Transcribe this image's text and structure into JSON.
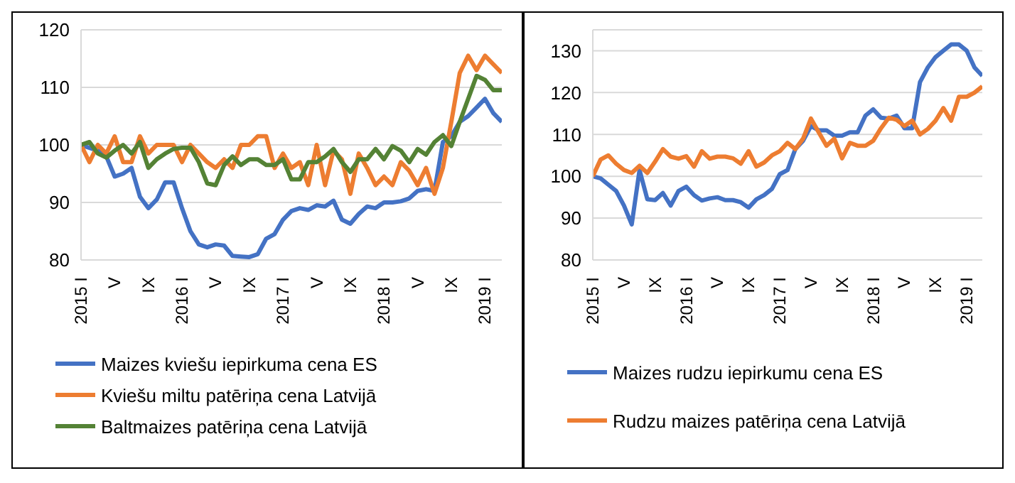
{
  "chart_data": [
    {
      "type": "line",
      "categories": [
        "2015 I",
        null,
        null,
        null,
        "V",
        null,
        null,
        null,
        "IX",
        null,
        null,
        null,
        "2016 I",
        null,
        null,
        null,
        "V",
        null,
        null,
        null,
        "IX",
        null,
        null,
        null,
        "2017 I",
        null,
        null,
        null,
        "V",
        null,
        null,
        null,
        "IX",
        null,
        null,
        null,
        "2018 I",
        null,
        null,
        null,
        "V",
        null,
        null,
        null,
        "IX",
        null,
        null,
        null,
        "2019 I",
        null,
        null
      ],
      "ylim": [
        80,
        120
      ],
      "yticks": [
        80,
        90,
        100,
        110,
        120
      ],
      "grid": "y",
      "legend": "bottom",
      "marker": "none",
      "series": [
        {
          "name": "Maizes kviešu iepirkuma cena ES",
          "color": "#4472c4",
          "values": [
            100,
            99.5,
            99,
            98,
            94.5,
            95,
            96,
            91,
            89,
            90.5,
            93.5,
            93.5,
            89,
            85,
            82.7,
            82.2,
            82.7,
            82.5,
            80.7,
            80.6,
            80.5,
            81,
            83.7,
            84.5,
            87,
            88.5,
            89,
            88.7,
            89.5,
            89.3,
            90.3,
            87,
            86.3,
            88,
            89.3,
            89,
            90,
            90,
            90.2,
            90.7,
            92,
            92.3,
            92,
            100.5,
            101.5,
            104,
            105,
            106.5,
            108,
            105.5,
            104
          ]
        },
        {
          "name": "Kviešu miltu patēriņa cena Latvijā",
          "color": "#ed7d31",
          "values": [
            100,
            97,
            100,
            98.5,
            101.5,
            97,
            97,
            101.5,
            98.5,
            100,
            100,
            100,
            97,
            100,
            98.5,
            97,
            96,
            97.5,
            96,
            100,
            100,
            101.5,
            101.5,
            96,
            98.5,
            96,
            97,
            93,
            100,
            93,
            99,
            97.5,
            91.5,
            98.5,
            96,
            93,
            94.5,
            93,
            97,
            95.5,
            93,
            96,
            91.5,
            96,
            104,
            112.5,
            115.5,
            113,
            115.5,
            114,
            112.5
          ]
        },
        {
          "name": "Baltmaizes patēriņa cena Latvijā",
          "color": "#548235",
          "values": [
            100,
            100.5,
            98.5,
            97.8,
            99,
            100,
            98.5,
            100.5,
            96,
            97.5,
            98.5,
            99.3,
            99.5,
            99.5,
            97,
            93.3,
            93,
            96.5,
            98,
            96.5,
            97.5,
            97.5,
            96.5,
            96.5,
            97.5,
            94,
            94,
            97,
            97,
            98,
            99.3,
            97,
            95.3,
            97.5,
            97.5,
            99.3,
            97.5,
            99.8,
            99,
            97,
            99.3,
            98.3,
            100.5,
            101.7,
            99.8,
            104,
            108,
            112,
            111.3,
            109.5,
            109.5
          ]
        }
      ]
    },
    {
      "type": "line",
      "categories": [
        "2015 I",
        null,
        null,
        null,
        "V",
        null,
        null,
        null,
        "IX",
        null,
        null,
        null,
        "2016 I",
        null,
        null,
        null,
        "V",
        null,
        null,
        null,
        "IX",
        null,
        null,
        null,
        "2017 I",
        null,
        null,
        null,
        "V",
        null,
        null,
        null,
        "IX",
        null,
        null,
        null,
        "2018 I",
        null,
        null,
        null,
        "V",
        null,
        null,
        null,
        "IX",
        null,
        null,
        null,
        "2019 I",
        null,
        null
      ],
      "ylim": [
        80,
        135
      ],
      "yticks": [
        80,
        90,
        100,
        110,
        120,
        130
      ],
      "grid": "y",
      "legend": "bottom",
      "marker": "none",
      "series": [
        {
          "name": "Maizes rudzu iepirkumu cena ES",
          "color": "#4472c4",
          "values": [
            100,
            99.5,
            98,
            96.5,
            93,
            88.5,
            101.5,
            94.5,
            94.3,
            96,
            93,
            96.5,
            97.5,
            95.5,
            94.2,
            94.7,
            95,
            94.3,
            94.3,
            93.8,
            92.5,
            94.5,
            95.5,
            97,
            100.5,
            101.5,
            106.5,
            108.5,
            112,
            111,
            111,
            109.7,
            109.7,
            110.5,
            110.5,
            114.5,
            116,
            114,
            113.8,
            114.5,
            111.5,
            111.5,
            122.5,
            126,
            128.5,
            130,
            131.5,
            131.5,
            130,
            126,
            124
          ]
        },
        {
          "name": "Rudzu maizes patēriņa cena Latvijā",
          "color": "#ed7d31",
          "values": [
            100,
            104,
            105,
            103,
            101.5,
            100.8,
            102.5,
            100.8,
            103.5,
            106.5,
            104.7,
            104.2,
            104.8,
            102.3,
            106,
            104.2,
            104.7,
            104.7,
            104.3,
            103,
            106,
            102.3,
            103.3,
            105,
            106,
            108,
            106.5,
            109,
            113.8,
            110.5,
            107.3,
            109,
            104.3,
            108,
            107.3,
            107.3,
            108.5,
            111.5,
            114,
            113.5,
            112,
            113.3,
            110,
            111.3,
            113.3,
            116.3,
            113.3,
            119,
            119,
            120,
            121.5
          ]
        }
      ]
    }
  ]
}
